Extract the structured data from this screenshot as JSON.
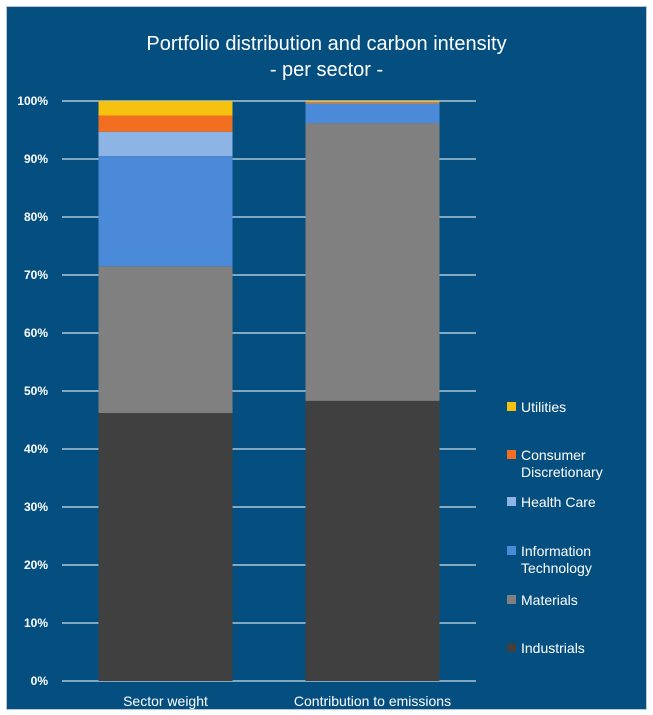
{
  "chart_data": {
    "type": "bar",
    "stacked": true,
    "title": "Portfolio distribution and carbon intensity",
    "subtitle": "- per sector -",
    "categories": [
      "Sector weight",
      "Contribution to emissions"
    ],
    "series": [
      {
        "name": "Industrials",
        "color": "#404040",
        "values": [
          46.2,
          48.3
        ]
      },
      {
        "name": "Materials",
        "color": "#808080",
        "values": [
          25.3,
          47.9
        ]
      },
      {
        "name": "Information Technology",
        "color": "#4a8ad8",
        "values": [
          19.0,
          3.3
        ]
      },
      {
        "name": "Health Care",
        "color": "#8db4e5",
        "values": [
          4.2,
          0.1
        ]
      },
      {
        "name": "Consumer Discretionary",
        "color": "#f26f21",
        "values": [
          2.8,
          0.2
        ]
      },
      {
        "name": "Utilities",
        "color": "#f5c20f",
        "values": [
          2.5,
          0.2
        ]
      }
    ],
    "yticks": [
      "0%",
      "10%",
      "20%",
      "30%",
      "40%",
      "50%",
      "60%",
      "70%",
      "80%",
      "90%",
      "100%"
    ],
    "ylim": [
      0,
      100
    ],
    "grid": true,
    "legend": "right"
  }
}
